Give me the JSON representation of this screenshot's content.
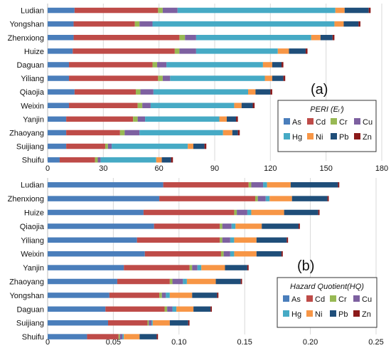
{
  "colors": {
    "As": "#4a7ebb",
    "Cd": "#be4b48",
    "Cr": "#98b954",
    "Cu": "#7d60a0",
    "Hg": "#46aac5",
    "Ni": "#f79646",
    "Pb": "#1f4e79",
    "Zn": "#8c1a1a"
  },
  "chart_data": [
    {
      "type": "bar",
      "orientation": "horizontal",
      "stacked": true,
      "panel_label": "(a)",
      "legend_title": "PERI (Eᵣⁱ)",
      "legend_position": "right",
      "xlim": [
        0,
        180
      ],
      "xticks": [
        "0",
        "30",
        "60",
        "90",
        "120",
        "150",
        "180"
      ],
      "categories": [
        "Ludian",
        "Yongshan",
        "Zhenxiong",
        "Huize",
        "Daguan",
        "Yiliang",
        "Qiaojia",
        "Weixin",
        "Yanjin",
        "Zhaoyang",
        "Suijiang",
        "Shuifu"
      ],
      "series": [
        {
          "name": "As",
          "values": [
            14.5,
            14,
            14,
            13.5,
            11.5,
            11.5,
            14.5,
            11.5,
            10,
            10,
            10,
            6.5
          ]
        },
        {
          "name": "Cd",
          "values": [
            45,
            33,
            57,
            55,
            45,
            48,
            33,
            37,
            36,
            29,
            21,
            19
          ]
        },
        {
          "name": "Cr",
          "values": [
            2.5,
            2.5,
            3,
            2.5,
            2.5,
            2.5,
            2.5,
            2.5,
            2.5,
            2.5,
            1.5,
            1.5
          ]
        },
        {
          "name": "Cu",
          "values": [
            8,
            7,
            6,
            9,
            5,
            4,
            7,
            4.5,
            4,
            8,
            2,
            1.5
          ]
        },
        {
          "name": "Hg",
          "values": [
            85,
            98,
            62,
            44,
            52,
            51,
            51,
            45,
            40,
            45,
            41,
            30
          ]
        },
        {
          "name": "Ni",
          "values": [
            5,
            5,
            5,
            6,
            5,
            4,
            4,
            4,
            4,
            5,
            3,
            3
          ]
        },
        {
          "name": "Pb",
          "values": [
            13,
            8,
            6.5,
            9,
            5,
            6,
            8,
            6,
            5,
            3,
            6,
            5
          ]
        },
        {
          "name": "Zn",
          "values": [
            1,
            1,
            1,
            1,
            1,
            1,
            1,
            1,
            1,
            1,
            1,
            1
          ]
        }
      ]
    },
    {
      "type": "bar",
      "orientation": "horizontal",
      "stacked": true,
      "panel_label": "(b)",
      "legend_title": "Hazard Quotient(HQ)",
      "legend_position": "right",
      "xlim": [
        0,
        0.25
      ],
      "xticks": [
        "0",
        "0.05",
        "0.10",
        "0.15",
        "0.20",
        "0.25"
      ],
      "categories": [
        "Ludian",
        "Zhenxiong",
        "Huize",
        "Qiaojia",
        "Yiliang",
        "Weixin",
        "Yanjin",
        "Zhaoyang",
        "Yongshan",
        "Daguan",
        "Suijiang",
        "Shuifu"
      ],
      "series": [
        {
          "name": "As",
          "values": [
            0.088,
            0.085,
            0.073,
            0.081,
            0.068,
            0.074,
            0.058,
            0.053,
            0.047,
            0.044,
            0.046,
            0.03
          ]
        },
        {
          "name": "Cd",
          "values": [
            0.065,
            0.073,
            0.069,
            0.05,
            0.063,
            0.058,
            0.05,
            0.04,
            0.038,
            0.045,
            0.03,
            0.024
          ]
        },
        {
          "name": "Cr",
          "values": [
            0.002,
            0.002,
            0.002,
            0.002,
            0.002,
            0.002,
            0.002,
            0.002,
            0.002,
            0.002,
            0.001,
            0.001
          ]
        },
        {
          "name": "Cu",
          "values": [
            0.009,
            0.006,
            0.008,
            0.007,
            0.006,
            0.005,
            0.004,
            0.008,
            0.003,
            0.004,
            0.002,
            0.002
          ]
        },
        {
          "name": "Hg",
          "values": [
            0.003,
            0.003,
            0.003,
            0.003,
            0.003,
            0.003,
            0.003,
            0.003,
            0.003,
            0.003,
            0.001,
            0.001
          ]
        },
        {
          "name": "Ni",
          "values": [
            0.018,
            0.017,
            0.025,
            0.02,
            0.017,
            0.017,
            0.018,
            0.022,
            0.017,
            0.013,
            0.013,
            0.012
          ]
        },
        {
          "name": "Pb",
          "values": [
            0.036,
            0.027,
            0.026,
            0.028,
            0.023,
            0.019,
            0.017,
            0.019,
            0.019,
            0.013,
            0.014,
            0.013
          ]
        },
        {
          "name": "Zn",
          "values": [
            0.001,
            0.001,
            0.001,
            0.001,
            0.001,
            0.001,
            0.001,
            0.001,
            0.001,
            0.001,
            0.001,
            0.001
          ]
        }
      ]
    }
  ]
}
